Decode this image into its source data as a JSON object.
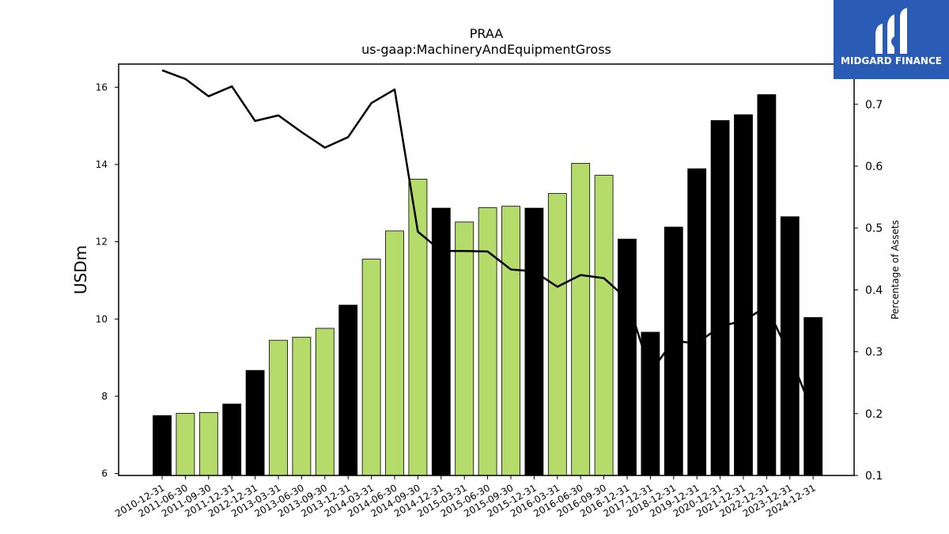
{
  "brand": {
    "name": "MIDGARD FINANCE",
    "color": "#2a5bb5",
    "icon": "midgard-logo-icon"
  },
  "chart_data": {
    "type": "bar",
    "title": "PRAA",
    "subtitle": "us-gaap:MachineryAndEquipmentGross",
    "ylabel": "USDm",
    "y2label": "Percentage of Assets",
    "ylim": [
      5.95,
      16.6
    ],
    "y2lim": [
      0.1,
      0.765
    ],
    "yticks": [
      "6",
      "8",
      "10",
      "12",
      "14",
      "16"
    ],
    "y2ticks": [
      "0.1",
      "0.2",
      "0.3",
      "0.4",
      "0.5",
      "0.6",
      "0.7"
    ],
    "grid": false,
    "colors": {
      "annual": "#000000",
      "quarterly": "#b5dc6a",
      "line": "#000000"
    },
    "categories": [
      "2010-12-31",
      "2011-06-30",
      "2011-09-30",
      "2011-12-31",
      "2012-12-31",
      "2013-03-31",
      "2013-06-30",
      "2013-09-30",
      "2013-12-31",
      "2014-03-31",
      "2014-06-30",
      "2014-09-30",
      "2014-12-31",
      "2015-03-31",
      "2015-06-30",
      "2015-09-30",
      "2015-12-31",
      "2016-03-31",
      "2016-06-30",
      "2016-09-30",
      "2016-12-31",
      "2017-12-31",
      "2018-12-31",
      "2019-12-31",
      "2020-12-31",
      "2021-12-31",
      "2022-12-31",
      "2023-12-31",
      "2024-12-31"
    ],
    "series": [
      {
        "type": "bar",
        "values": [
          7.5,
          7.56,
          7.58,
          7.8,
          8.67,
          9.45,
          9.53,
          9.76,
          10.36,
          11.55,
          12.28,
          13.62,
          12.87,
          12.51,
          12.88,
          12.92,
          12.87,
          13.25,
          14.03,
          13.72,
          12.07,
          9.66,
          12.38,
          13.89,
          15.14,
          15.29,
          15.81,
          12.65,
          10.04
        ],
        "period": [
          "annual",
          "quarter",
          "quarter",
          "annual",
          "annual",
          "quarter",
          "quarter",
          "quarter",
          "annual",
          "quarter",
          "quarter",
          "quarter",
          "annual",
          "quarter",
          "quarter",
          "quarter",
          "annual",
          "quarter",
          "quarter",
          "quarter",
          "annual",
          "annual",
          "annual",
          "annual",
          "annual",
          "annual",
          "annual",
          "annual",
          "annual"
        ]
      },
      {
        "type": "line",
        "axis": "right",
        "values": [
          0.755,
          0.741,
          0.713,
          0.729,
          0.673,
          0.682,
          0.655,
          0.63,
          0.647,
          0.702,
          0.724,
          0.494,
          0.463,
          0.463,
          0.462,
          0.433,
          0.43,
          0.405,
          0.424,
          0.419,
          0.385,
          0.267,
          0.318,
          0.313,
          0.341,
          0.35,
          0.373,
          0.294,
          0.2
        ]
      }
    ]
  }
}
